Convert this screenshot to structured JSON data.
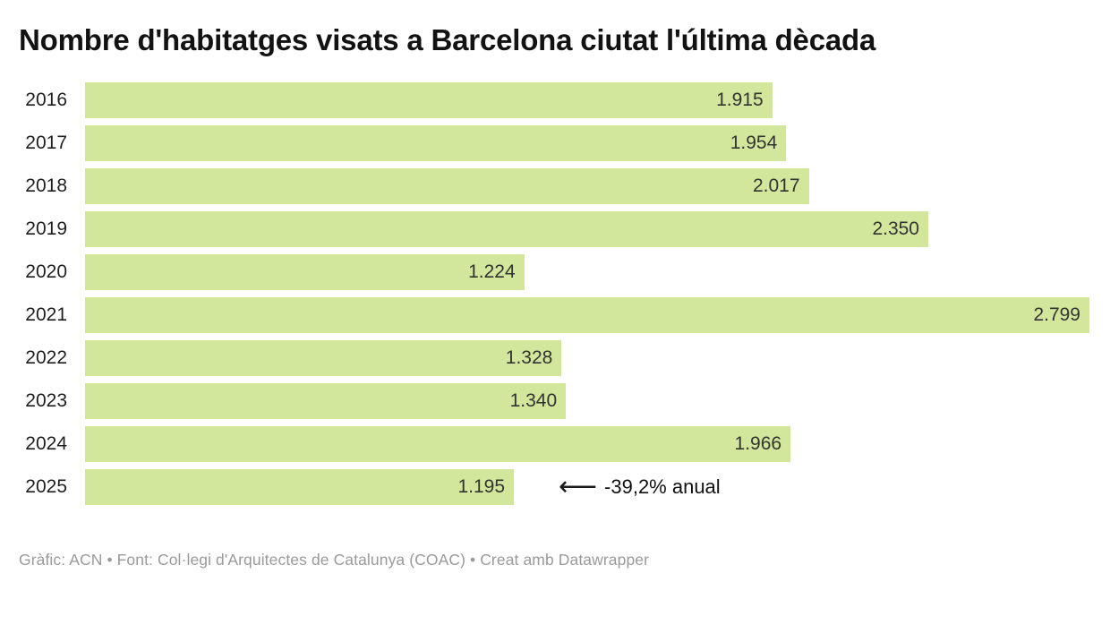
{
  "header": {
    "title": "Nombre d'habitatges visats a Barcelona ciutat l'última dècada"
  },
  "chart_data": {
    "type": "bar",
    "orientation": "horizontal",
    "title": "Nombre d'habitatges visats a Barcelona ciutat l'última dècada",
    "categories": [
      "2016",
      "2017",
      "2018",
      "2019",
      "2020",
      "2021",
      "2022",
      "2023",
      "2024",
      "2025"
    ],
    "values": [
      1915,
      1954,
      2017,
      2350,
      1224,
      2799,
      1328,
      1340,
      1966,
      1195
    ],
    "value_labels": [
      "1.915",
      "1.954",
      "2.017",
      "2.350",
      "1.224",
      "2.799",
      "1.328",
      "1.340",
      "1.966",
      "1.195"
    ],
    "xlim": [
      0,
      2799
    ],
    "grid": false,
    "legend": "none",
    "bar_color": "#d2e79c",
    "annotation": {
      "category": "2025",
      "arrow_glyph": "⟵",
      "text": "-39,2% anual"
    }
  },
  "footer": {
    "text": "Gràfic: ACN • Font: Col·legi d'Arquitectes de Catalunya (COAC) • Creat amb Datawrapper"
  }
}
